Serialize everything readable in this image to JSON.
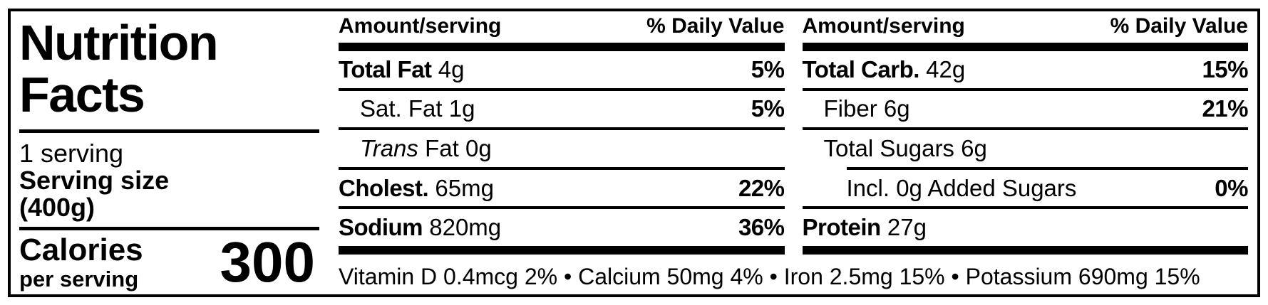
{
  "left_panel": {
    "title_line1": "Nutrition",
    "title_line2": "Facts",
    "servings": "1 serving",
    "serving_size_label": "Serving size",
    "serving_size_value": "(400g)",
    "calories_label": "Calories",
    "calories_sublabel": "per serving",
    "calories_value": "300"
  },
  "table": {
    "columns": [
      {
        "header": {
          "amount": "Amount/serving",
          "daily_value": "% Daily Value"
        },
        "rows": [
          {
            "name": "Total Fat",
            "style": "bold",
            "amount": "4g",
            "dv": "5%",
            "indent": 0,
            "rule_above": "none"
          },
          {
            "name": "Sat. Fat",
            "style": "regular",
            "amount": "1g",
            "dv": "5%",
            "indent": 1,
            "rule_above": "full"
          },
          {
            "name": "Trans",
            "style": "italic",
            "amount": "Fat 0g",
            "dv": "",
            "indent": 1,
            "rule_above": "full"
          },
          {
            "name": "Cholest.",
            "style": "bold",
            "amount": "65mg",
            "dv": "22%",
            "indent": 0,
            "rule_above": "full"
          },
          {
            "name": "Sodium",
            "style": "bold",
            "amount": "820mg",
            "dv": "36%",
            "indent": 0,
            "rule_above": "full"
          }
        ]
      },
      {
        "header": {
          "amount": "Amount/serving",
          "daily_value": "% Daily Value"
        },
        "rows": [
          {
            "name": "Total Carb.",
            "style": "bold",
            "amount": "42g",
            "dv": "15%",
            "indent": 0,
            "rule_above": "none"
          },
          {
            "name": "Fiber",
            "style": "regular",
            "amount": "6g",
            "dv": "21%",
            "indent": 1,
            "rule_above": "full"
          },
          {
            "name": "Total Sugars",
            "style": "regular",
            "amount": "6g",
            "dv": "",
            "indent": 1,
            "rule_above": "full"
          },
          {
            "name": "Incl. 0g Added Sugars",
            "style": "regular",
            "amount": "",
            "dv": "0%",
            "indent": 2,
            "rule_above": "indented"
          },
          {
            "name": "Protein",
            "style": "bold",
            "amount": "27g",
            "dv": "",
            "indent": 0,
            "rule_above": "full"
          }
        ]
      }
    ],
    "footer": {
      "separator": "•",
      "items": [
        "Vitamin D 0.4mcg 2%",
        "Calcium 50mg 4%",
        "Iron 2.5mg 15%",
        "Potassium 690mg 15%"
      ]
    }
  },
  "colors": {
    "ink": "#000000",
    "background": "#ffffff"
  }
}
